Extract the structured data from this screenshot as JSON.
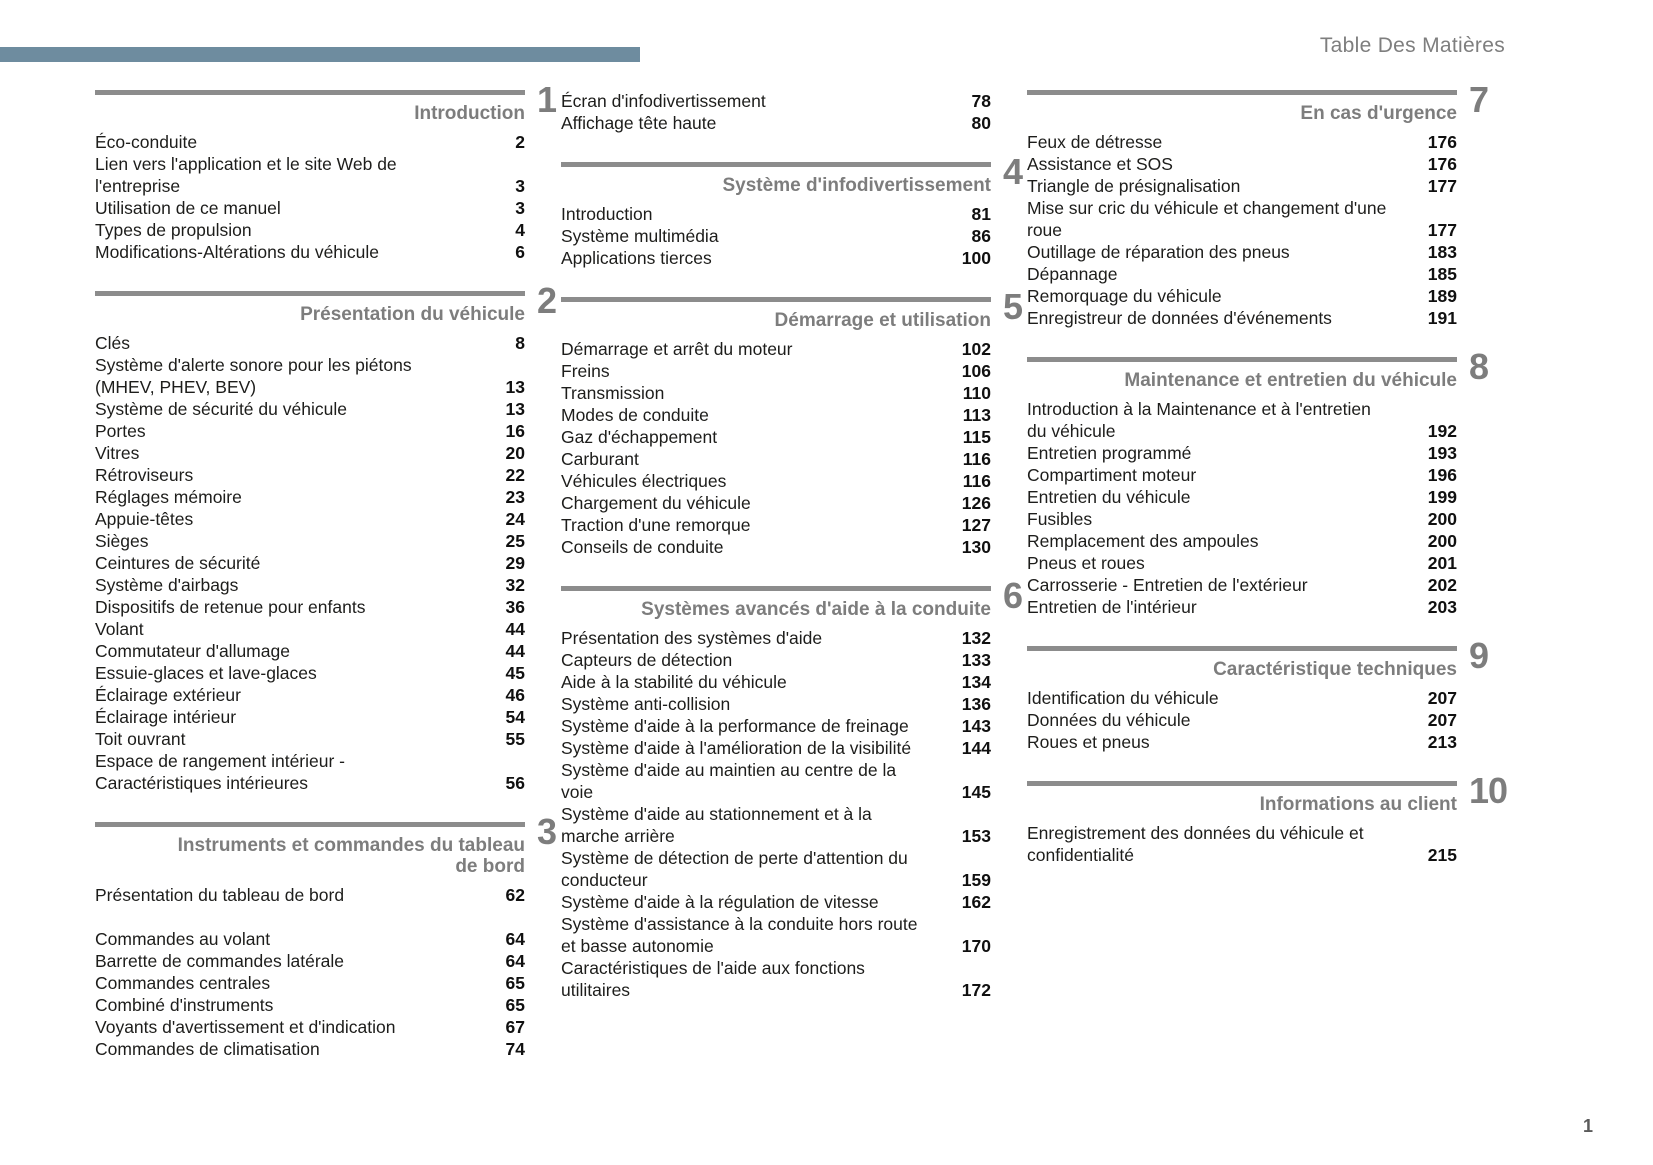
{
  "page": {
    "header_title": "Table Des Matières",
    "page_number": "1",
    "colors": {
      "accent_bar": "#6e8c9f",
      "rule": "#8c8c8c",
      "heading": "#7d7d7d"
    }
  },
  "columns": [
    {
      "blocks": [
        {
          "number": "1",
          "title": "Introduction",
          "items": [
            {
              "label": "Éco-conduite",
              "page": "2"
            },
            {
              "label": "Lien vers l'application et le site Web de l'entreprise",
              "page": "3"
            },
            {
              "label": "Utilisation de ce manuel",
              "page": "3"
            },
            {
              "label": "Types de propulsion",
              "page": "4"
            },
            {
              "label": "Modifications-Altérations du véhicule",
              "page": "6"
            }
          ]
        },
        {
          "number": "2",
          "title": "Présentation du véhicule",
          "items": [
            {
              "label": "Clés",
              "page": "8"
            },
            {
              "label": "Système d'alerte sonore pour les piétons (MHEV, PHEV, BEV)",
              "page": "13"
            },
            {
              "label": "Système de sécurité du véhicule",
              "page": "13"
            },
            {
              "label": "Portes",
              "page": "16"
            },
            {
              "label": "Vitres",
              "page": "20"
            },
            {
              "label": "Rétroviseurs",
              "page": "22"
            },
            {
              "label": "Réglages mémoire",
              "page": "23"
            },
            {
              "label": "Appuie-têtes",
              "page": "24"
            },
            {
              "label": "Sièges",
              "page": "25"
            },
            {
              "label": "Ceintures de sécurité",
              "page": "29"
            },
            {
              "label": "Système d'airbags",
              "page": "32"
            },
            {
              "label": "Dispositifs de retenue pour enfants",
              "page": "36"
            },
            {
              "label": "Volant",
              "page": "44"
            },
            {
              "label": "Commutateur d'allumage",
              "page": "44"
            },
            {
              "label": "Essuie-glaces et lave-glaces",
              "page": "45"
            },
            {
              "label": "Éclairage extérieur",
              "page": "46"
            },
            {
              "label": "Éclairage intérieur",
              "page": "54"
            },
            {
              "label": "Toit ouvrant",
              "page": "55"
            },
            {
              "label": "Espace de rangement intérieur - Caractéristiques intérieures",
              "page": "56"
            }
          ]
        },
        {
          "number": "3",
          "title": "Instruments et commandes du tableau de bord",
          "items": [
            {
              "label": "Présentation du tableau de bord",
              "page": "62",
              "gap_after": true
            },
            {
              "label": "Commandes au volant",
              "page": "64"
            },
            {
              "label": "Barrette de commandes latérale",
              "page": "64"
            },
            {
              "label": "Commandes centrales",
              "page": "65"
            },
            {
              "label": "Combiné d'instruments",
              "page": "65"
            },
            {
              "label": "Voyants d'avertissement et d'indication",
              "page": "67"
            },
            {
              "label": "Commandes de climatisation",
              "page": "74"
            }
          ]
        }
      ]
    },
    {
      "blocks": [
        {
          "items": [
            {
              "label": "Écran d'infodivertissement",
              "page": "78"
            },
            {
              "label": "Affichage tête haute",
              "page": "80"
            }
          ]
        },
        {
          "number": "4",
          "title": "Système d'infodivertissement",
          "items": [
            {
              "label": "Introduction",
              "page": "81"
            },
            {
              "label": "Système multimédia",
              "page": "86"
            },
            {
              "label": "Applications tierces",
              "page": "100"
            }
          ]
        },
        {
          "number": "5",
          "title": "Démarrage et utilisation",
          "items": [
            {
              "label": "Démarrage et arrêt du moteur",
              "page": "102"
            },
            {
              "label": "Freins",
              "page": "106"
            },
            {
              "label": "Transmission",
              "page": "110"
            },
            {
              "label": "Modes de conduite",
              "page": "113"
            },
            {
              "label": "Gaz d'échappement",
              "page": "115"
            },
            {
              "label": "Carburant",
              "page": "116"
            },
            {
              "label": "Véhicules électriques",
              "page": "116"
            },
            {
              "label": "Chargement du véhicule",
              "page": "126"
            },
            {
              "label": "Traction d'une remorque",
              "page": "127"
            },
            {
              "label": "Conseils de conduite",
              "page": "130"
            }
          ]
        },
        {
          "number": "6",
          "title": "Systèmes avancés d'aide à la conduite",
          "items": [
            {
              "label": "Présentation des systèmes d'aide",
              "page": "132"
            },
            {
              "label": "Capteurs de détection",
              "page": "133"
            },
            {
              "label": "Aide à la stabilité du véhicule",
              "page": "134"
            },
            {
              "label": "Système anti-collision",
              "page": "136"
            },
            {
              "label": "Système d'aide à la performance de freinage",
              "page": "143"
            },
            {
              "label": "Système d'aide à l'amélioration de la visibilité",
              "page": "144"
            },
            {
              "label": "Système d'aide au maintien au centre de la voie",
              "page": "145"
            },
            {
              "label": "Système d'aide au stationnement et à la marche arrière",
              "page": "153"
            },
            {
              "label": "Système de détection de perte d'attention du conducteur",
              "page": "159"
            },
            {
              "label": "Système d'aide à la régulation de vitesse",
              "page": "162"
            },
            {
              "label": "Système d'assistance à la conduite hors route et basse autonomie",
              "page": "170"
            },
            {
              "label": "Caractéristiques de l'aide aux fonctions utilitaires",
              "page": "172"
            }
          ]
        }
      ]
    },
    {
      "blocks": [
        {
          "number": "7",
          "title": "En cas d'urgence",
          "items": [
            {
              "label": "Feux de détresse",
              "page": "176"
            },
            {
              "label": "Assistance et SOS",
              "page": "176"
            },
            {
              "label": "Triangle de présignalisation",
              "page": "177"
            },
            {
              "label": "Mise sur cric du véhicule et changement d'une roue",
              "page": "177"
            },
            {
              "label": "Outillage de réparation des pneus",
              "page": "183"
            },
            {
              "label": "Dépannage",
              "page": "185"
            },
            {
              "label": "Remorquage du véhicule",
              "page": "189"
            },
            {
              "label": "Enregistreur de données d'événements",
              "page": "191"
            }
          ]
        },
        {
          "number": "8",
          "title": "Maintenance et entretien du véhicule",
          "items": [
            {
              "label": "Introduction à la Maintenance et à l'entretien du véhicule",
              "page": "192"
            },
            {
              "label": "Entretien programmé",
              "page": "193"
            },
            {
              "label": "Compartiment moteur",
              "page": "196"
            },
            {
              "label": "Entretien du véhicule",
              "page": "199"
            },
            {
              "label": "Fusibles",
              "page": "200"
            },
            {
              "label": "Remplacement des ampoules",
              "page": "200"
            },
            {
              "label": "Pneus et roues",
              "page": "201"
            },
            {
              "label": "Carrosserie - Entretien de l'extérieur",
              "page": "202"
            },
            {
              "label": "Entretien de l'intérieur",
              "page": "203"
            }
          ]
        },
        {
          "number": "9",
          "title": "Caractéristique techniques",
          "items": [
            {
              "label": "Identification du véhicule",
              "page": "207"
            },
            {
              "label": "Données du véhicule",
              "page": "207"
            },
            {
              "label": "Roues et pneus",
              "page": "213"
            }
          ]
        },
        {
          "number": "10",
          "title": "Informations au client",
          "items": [
            {
              "label": "Enregistrement des données du véhicule et confidentialité",
              "page": "215"
            }
          ]
        }
      ]
    }
  ]
}
